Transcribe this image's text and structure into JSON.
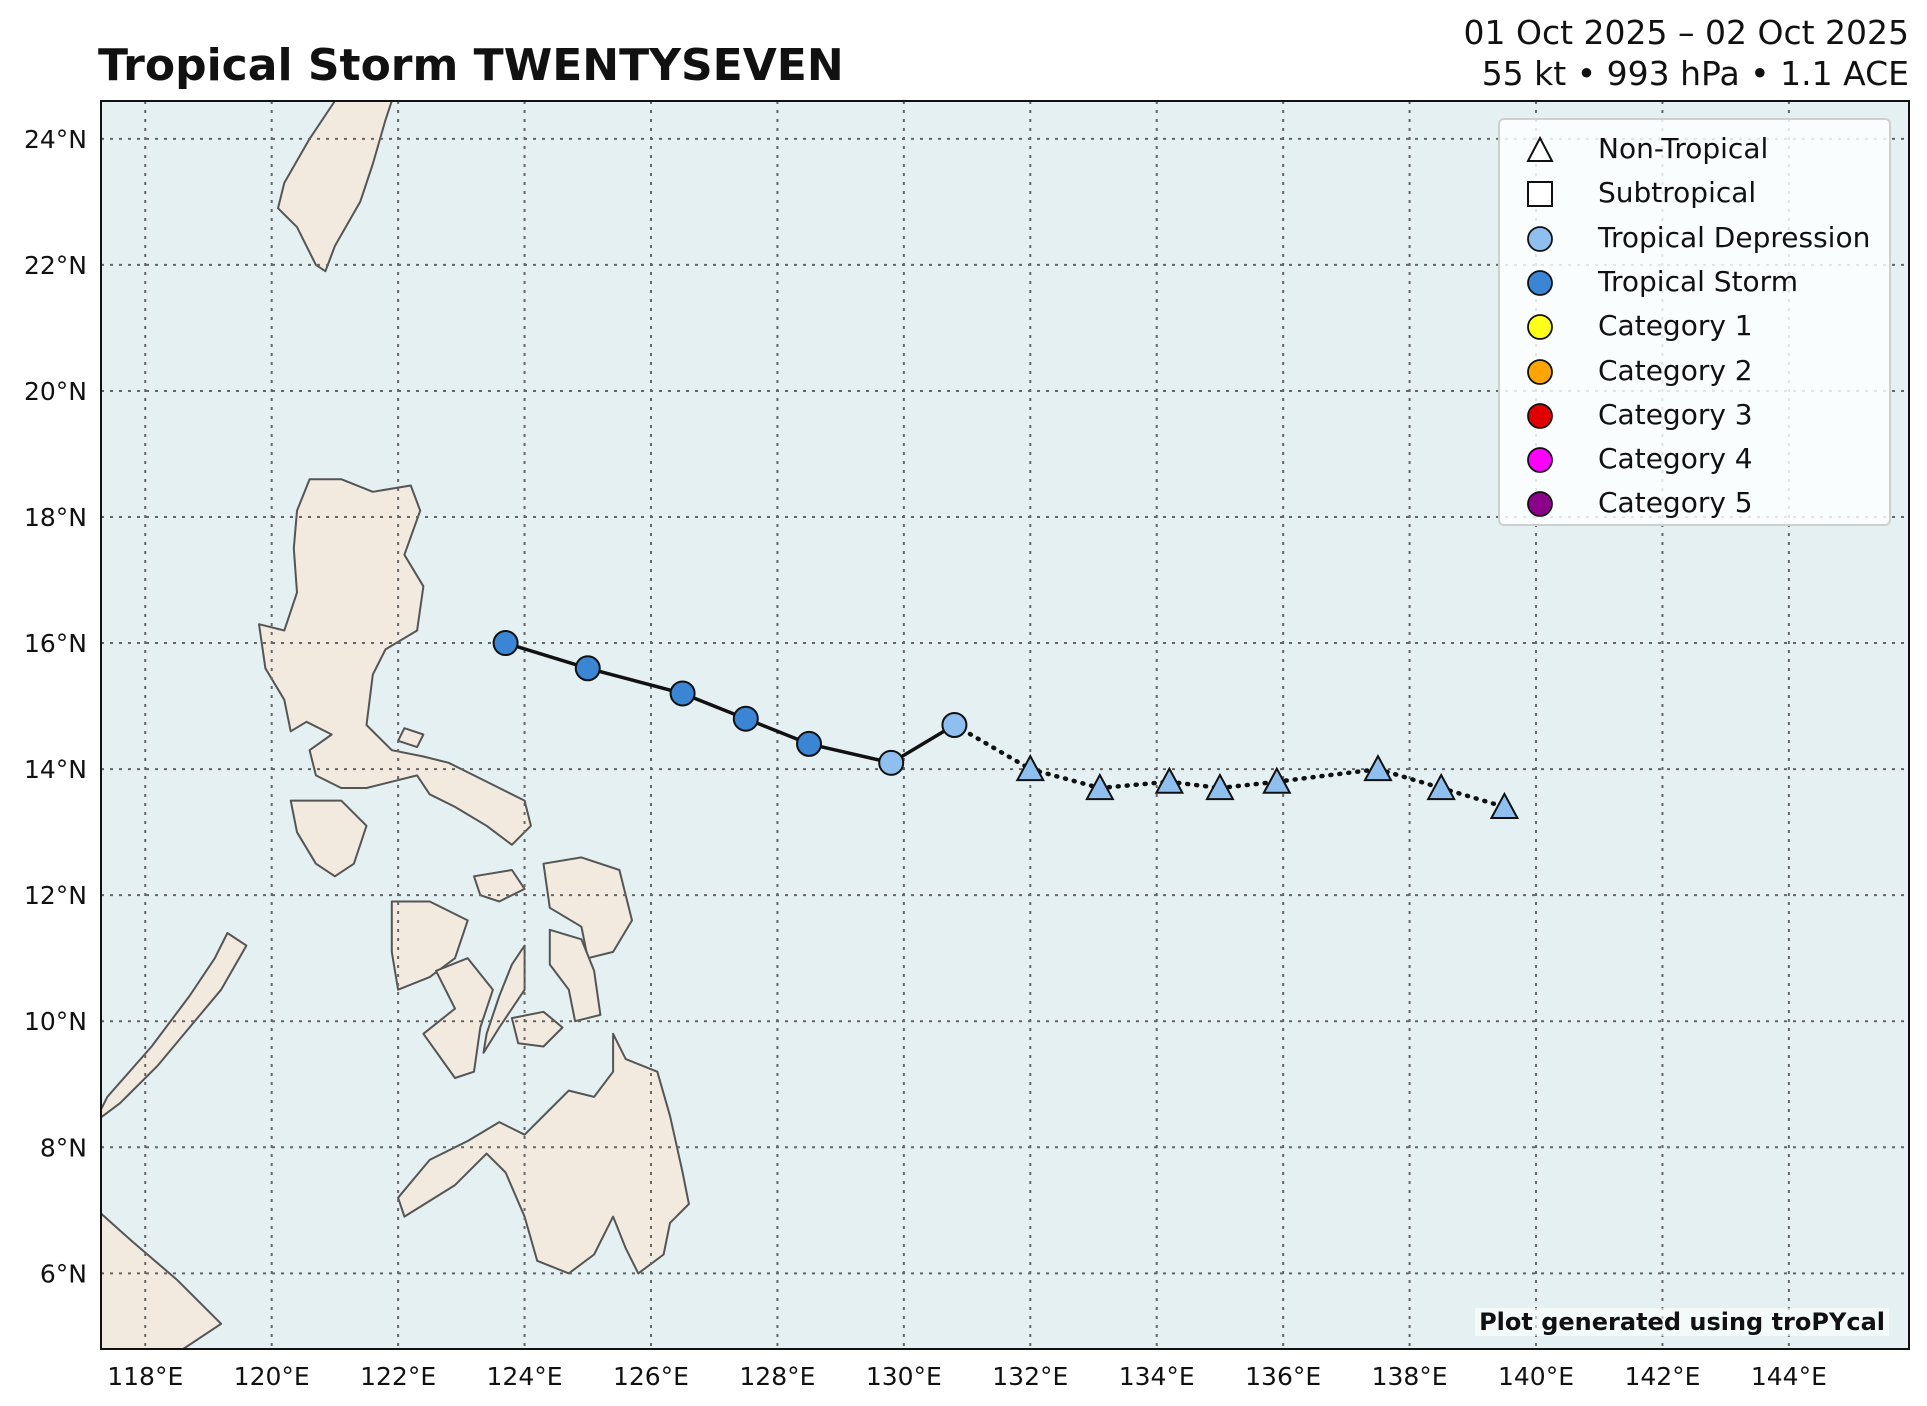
{
  "title": "Tropical Storm TWENTYSEVEN",
  "date_range": "01 Oct 2025 – 02 Oct 2025",
  "summary": "55 kt • 993 hPa • 1.1 ACE",
  "credit": "Plot generated using troPYcal",
  "map": {
    "lon_range": [
      117.3,
      145.9
    ],
    "lat_range": [
      4.8,
      24.6
    ],
    "ocean_color": "#e4f0f2",
    "land_color": "#f3eadf",
    "coast_color": "#555555",
    "grid_color": "#666666"
  },
  "x_ticks": [
    {
      "value": 118,
      "label": "118°E"
    },
    {
      "value": 120,
      "label": "120°E"
    },
    {
      "value": 122,
      "label": "122°E"
    },
    {
      "value": 124,
      "label": "124°E"
    },
    {
      "value": 126,
      "label": "126°E"
    },
    {
      "value": 128,
      "label": "128°E"
    },
    {
      "value": 130,
      "label": "130°E"
    },
    {
      "value": 132,
      "label": "132°E"
    },
    {
      "value": 134,
      "label": "134°E"
    },
    {
      "value": 136,
      "label": "136°E"
    },
    {
      "value": 138,
      "label": "138°E"
    },
    {
      "value": 140,
      "label": "140°E"
    },
    {
      "value": 142,
      "label": "142°E"
    },
    {
      "value": 144,
      "label": "144°E"
    }
  ],
  "y_ticks": [
    {
      "value": 6,
      "label": "6°N"
    },
    {
      "value": 8,
      "label": "8°N"
    },
    {
      "value": 10,
      "label": "10°N"
    },
    {
      "value": 12,
      "label": "12°N"
    },
    {
      "value": 14,
      "label": "14°N"
    },
    {
      "value": 16,
      "label": "16°N"
    },
    {
      "value": 18,
      "label": "18°N"
    },
    {
      "value": 20,
      "label": "20°N"
    },
    {
      "value": 22,
      "label": "22°N"
    },
    {
      "value": 24,
      "label": "24°N"
    }
  ],
  "legend": [
    {
      "label": "Non-Tropical",
      "shape": "triangle",
      "color": "#ffffff"
    },
    {
      "label": "Subtropical",
      "shape": "square",
      "color": "#ffffff"
    },
    {
      "label": "Tropical Depression",
      "shape": "circle",
      "color": "#8fbfef"
    },
    {
      "label": "Tropical Storm",
      "shape": "circle",
      "color": "#3a86d4"
    },
    {
      "label": "Category 1",
      "shape": "circle",
      "color": "#ffff1a"
    },
    {
      "label": "Category 2",
      "shape": "circle",
      "color": "#ffa500"
    },
    {
      "label": "Category 3",
      "shape": "circle",
      "color": "#e00000"
    },
    {
      "label": "Category 4",
      "shape": "circle",
      "color": "#ff00ff"
    },
    {
      "label": "Category 5",
      "shape": "circle",
      "color": "#8b008b"
    }
  ],
  "track": [
    {
      "lon": 123.7,
      "lat": 16.0,
      "type": "TS",
      "shape": "circle",
      "color": "#3a86d4"
    },
    {
      "lon": 125.0,
      "lat": 15.6,
      "type": "TS",
      "shape": "circle",
      "color": "#3a86d4"
    },
    {
      "lon": 126.5,
      "lat": 15.2,
      "type": "TS",
      "shape": "circle",
      "color": "#3a86d4"
    },
    {
      "lon": 127.5,
      "lat": 14.8,
      "type": "TS",
      "shape": "circle",
      "color": "#3a86d4"
    },
    {
      "lon": 128.5,
      "lat": 14.4,
      "type": "TS",
      "shape": "circle",
      "color": "#3a86d4"
    },
    {
      "lon": 129.8,
      "lat": 14.1,
      "type": "TD",
      "shape": "circle",
      "color": "#8fbfef"
    },
    {
      "lon": 130.8,
      "lat": 14.7,
      "type": "TD",
      "shape": "circle",
      "color": "#8fbfef"
    },
    {
      "lon": 132.0,
      "lat": 14.0,
      "type": "NT",
      "shape": "triangle",
      "color": "#8fbfef"
    },
    {
      "lon": 133.1,
      "lat": 13.7,
      "type": "NT",
      "shape": "triangle",
      "color": "#8fbfef"
    },
    {
      "lon": 134.2,
      "lat": 13.8,
      "type": "NT",
      "shape": "triangle",
      "color": "#8fbfef"
    },
    {
      "lon": 135.0,
      "lat": 13.7,
      "type": "NT",
      "shape": "triangle",
      "color": "#8fbfef"
    },
    {
      "lon": 135.9,
      "lat": 13.8,
      "type": "NT",
      "shape": "triangle",
      "color": "#8fbfef"
    },
    {
      "lon": 137.5,
      "lat": 14.0,
      "type": "NT",
      "shape": "triangle",
      "color": "#8fbfef"
    },
    {
      "lon": 138.5,
      "lat": 13.7,
      "type": "NT",
      "shape": "triangle",
      "color": "#8fbfef"
    },
    {
      "lon": 139.5,
      "lat": 13.4,
      "type": "NT",
      "shape": "triangle",
      "color": "#8fbfef"
    }
  ],
  "land": [
    {
      "name": "taiwan",
      "points": [
        [
          121.9,
          25.2
        ],
        [
          121.5,
          25.0
        ],
        [
          121.0,
          24.6
        ],
        [
          120.6,
          24.0
        ],
        [
          120.2,
          23.3
        ],
        [
          120.1,
          22.9
        ],
        [
          120.4,
          22.6
        ],
        [
          120.7,
          22.0
        ],
        [
          120.85,
          21.9
        ],
        [
          121.0,
          22.3
        ],
        [
          121.4,
          23.0
        ],
        [
          121.6,
          23.6
        ],
        [
          121.8,
          24.3
        ],
        [
          122.0,
          24.9
        ]
      ]
    },
    {
      "name": "luzon",
      "points": [
        [
          120.6,
          18.6
        ],
        [
          121.1,
          18.6
        ],
        [
          121.6,
          18.4
        ],
        [
          122.2,
          18.5
        ],
        [
          122.35,
          18.1
        ],
        [
          122.1,
          17.4
        ],
        [
          122.4,
          16.9
        ],
        [
          122.3,
          16.2
        ],
        [
          121.8,
          15.9
        ],
        [
          121.6,
          15.5
        ],
        [
          121.5,
          14.7
        ],
        [
          121.9,
          14.3
        ],
        [
          122.4,
          14.2
        ],
        [
          122.8,
          14.1
        ],
        [
          123.2,
          13.9
        ],
        [
          123.6,
          13.7
        ],
        [
          124.0,
          13.5
        ],
        [
          124.1,
          13.1
        ],
        [
          123.8,
          12.8
        ],
        [
          123.4,
          13.1
        ],
        [
          122.9,
          13.4
        ],
        [
          122.5,
          13.6
        ],
        [
          122.3,
          13.9
        ],
        [
          121.9,
          13.8
        ],
        [
          121.5,
          13.7
        ],
        [
          121.1,
          13.7
        ],
        [
          120.7,
          13.9
        ],
        [
          120.6,
          14.3
        ],
        [
          120.95,
          14.55
        ],
        [
          120.55,
          14.75
        ],
        [
          120.3,
          14.6
        ],
        [
          120.2,
          15.1
        ],
        [
          119.9,
          15.6
        ],
        [
          119.8,
          16.3
        ],
        [
          120.2,
          16.2
        ],
        [
          120.4,
          16.8
        ],
        [
          120.35,
          17.5
        ],
        [
          120.4,
          18.1
        ]
      ]
    },
    {
      "name": "mindoro",
      "points": [
        [
          120.3,
          13.5
        ],
        [
          121.1,
          13.5
        ],
        [
          121.5,
          13.1
        ],
        [
          121.3,
          12.5
        ],
        [
          121.0,
          12.3
        ],
        [
          120.7,
          12.5
        ],
        [
          120.4,
          13.0
        ]
      ]
    },
    {
      "name": "panay",
      "points": [
        [
          121.9,
          11.9
        ],
        [
          122.5,
          11.9
        ],
        [
          123.1,
          11.6
        ],
        [
          122.9,
          11.0
        ],
        [
          122.5,
          10.7
        ],
        [
          122.0,
          10.5
        ],
        [
          121.9,
          11.1
        ]
      ]
    },
    {
      "name": "negros",
      "points": [
        [
          122.6,
          10.8
        ],
        [
          123.1,
          11.0
        ],
        [
          123.5,
          10.5
        ],
        [
          123.3,
          9.9
        ],
        [
          123.2,
          9.2
        ],
        [
          122.9,
          9.1
        ],
        [
          122.4,
          9.8
        ],
        [
          122.9,
          10.2
        ]
      ]
    },
    {
      "name": "cebu",
      "points": [
        [
          124.0,
          11.2
        ],
        [
          123.8,
          10.9
        ],
        [
          123.6,
          10.4
        ],
        [
          123.4,
          9.8
        ],
        [
          123.35,
          9.5
        ],
        [
          123.6,
          9.9
        ],
        [
          124.0,
          10.5
        ]
      ]
    },
    {
      "name": "bohol",
      "points": [
        [
          123.8,
          10.05
        ],
        [
          124.3,
          10.15
        ],
        [
          124.6,
          9.9
        ],
        [
          124.3,
          9.6
        ],
        [
          123.9,
          9.65
        ]
      ]
    },
    {
      "name": "samar",
      "points": [
        [
          124.3,
          12.5
        ],
        [
          124.9,
          12.6
        ],
        [
          125.5,
          12.4
        ],
        [
          125.7,
          11.6
        ],
        [
          125.4,
          11.1
        ],
        [
          125.0,
          11.0
        ],
        [
          124.9,
          11.5
        ],
        [
          124.4,
          11.8
        ]
      ]
    },
    {
      "name": "leyte",
      "points": [
        [
          124.4,
          11.45
        ],
        [
          124.9,
          11.3
        ],
        [
          125.1,
          10.8
        ],
        [
          125.2,
          10.1
        ],
        [
          124.8,
          10.0
        ],
        [
          124.7,
          10.5
        ],
        [
          124.4,
          10.9
        ]
      ]
    },
    {
      "name": "masbate",
      "points": [
        [
          123.2,
          12.3
        ],
        [
          123.8,
          12.4
        ],
        [
          124.0,
          12.1
        ],
        [
          123.6,
          11.9
        ],
        [
          123.3,
          12.0
        ]
      ]
    },
    {
      "name": "palawan",
      "points": [
        [
          119.3,
          11.4
        ],
        [
          119.6,
          11.2
        ],
        [
          119.2,
          10.5
        ],
        [
          118.7,
          9.9
        ],
        [
          118.2,
          9.3
        ],
        [
          117.6,
          8.7
        ],
        [
          117.2,
          8.4
        ],
        [
          117.4,
          8.8
        ],
        [
          118.1,
          9.6
        ],
        [
          118.7,
          10.4
        ],
        [
          119.1,
          11.0
        ]
      ]
    },
    {
      "name": "mindanao",
      "points": [
        [
          125.4,
          9.8
        ],
        [
          125.6,
          9.4
        ],
        [
          126.1,
          9.2
        ],
        [
          126.3,
          8.5
        ],
        [
          126.5,
          7.6
        ],
        [
          126.6,
          7.1
        ],
        [
          126.3,
          6.8
        ],
        [
          126.2,
          6.3
        ],
        [
          125.8,
          6.0
        ],
        [
          125.6,
          6.4
        ],
        [
          125.4,
          6.9
        ],
        [
          125.1,
          6.3
        ],
        [
          124.7,
          6.0
        ],
        [
          124.2,
          6.2
        ],
        [
          124.0,
          6.9
        ],
        [
          123.7,
          7.6
        ],
        [
          123.4,
          7.9
        ],
        [
          122.9,
          7.4
        ],
        [
          122.1,
          6.9
        ],
        [
          122.0,
          7.2
        ],
        [
          122.5,
          7.8
        ],
        [
          123.1,
          8.1
        ],
        [
          123.6,
          8.4
        ],
        [
          124.0,
          8.2
        ],
        [
          124.4,
          8.6
        ],
        [
          124.7,
          8.9
        ],
        [
          125.1,
          8.8
        ],
        [
          125.4,
          9.2
        ]
      ]
    },
    {
      "name": "borneo",
      "points": [
        [
          117.3,
          6.95
        ],
        [
          117.8,
          6.5
        ],
        [
          118.5,
          5.9
        ],
        [
          119.2,
          5.2
        ],
        [
          118.6,
          4.8
        ],
        [
          117.3,
          4.8
        ]
      ]
    },
    {
      "name": "bataan-islet",
      "points": [
        [
          122.1,
          14.65
        ],
        [
          122.4,
          14.55
        ],
        [
          122.3,
          14.35
        ],
        [
          122.0,
          14.45
        ]
      ]
    }
  ]
}
